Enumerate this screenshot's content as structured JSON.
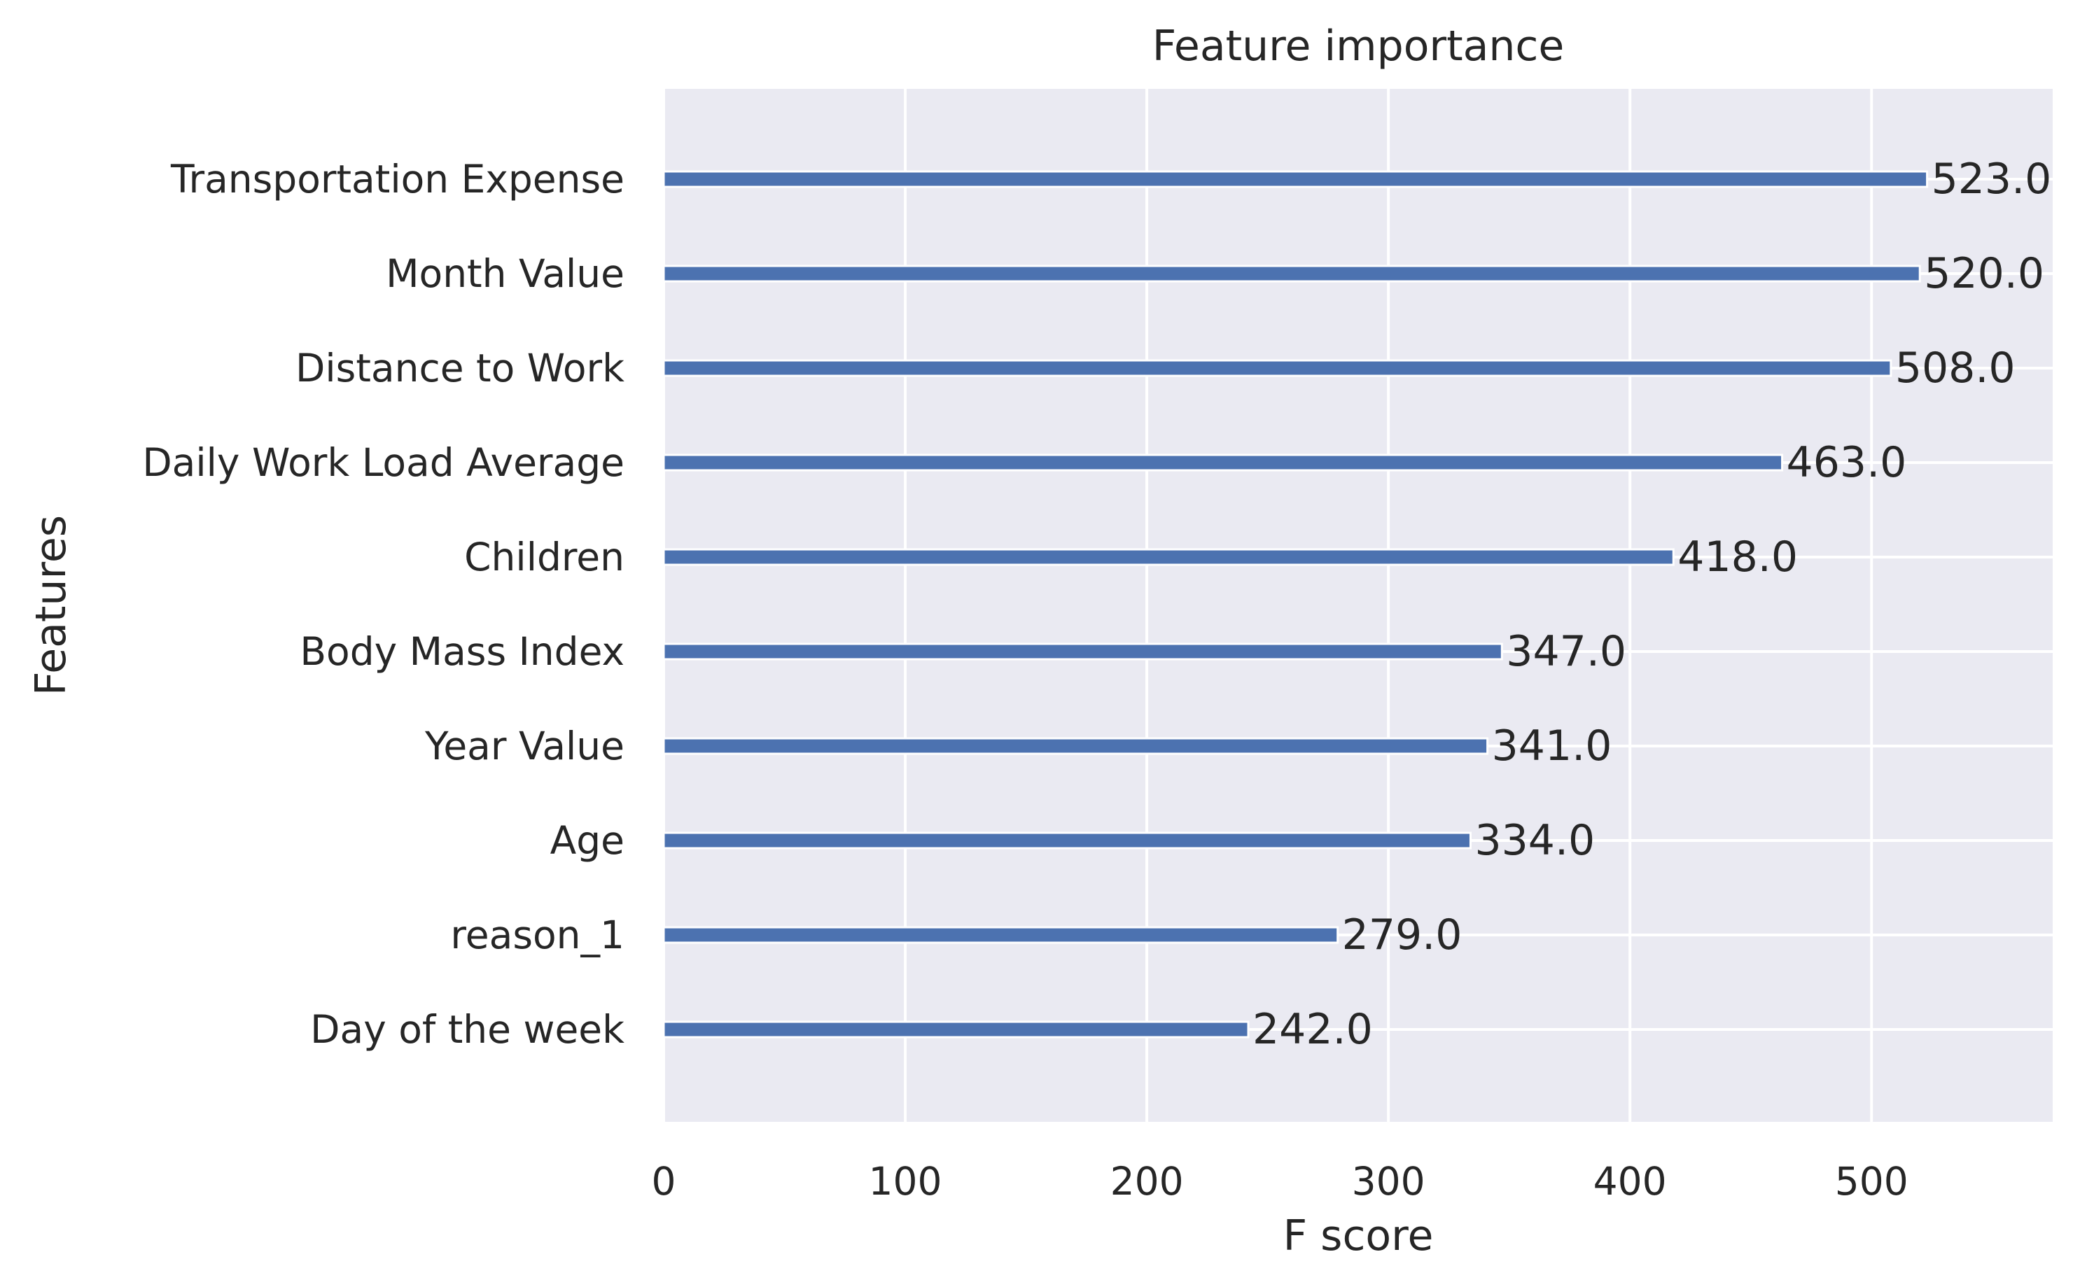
{
  "chart_data": {
    "type": "bar",
    "orientation": "horizontal",
    "title": "Feature importance",
    "xlabel": "F score",
    "ylabel": "Features",
    "categories": [
      "Transportation Expense",
      "Month Value",
      "Distance to Work",
      "Daily Work Load Average",
      "Children",
      "Body Mass Index",
      "Year Value",
      "Age",
      "reason_1",
      "Day of the week"
    ],
    "values": [
      523.0,
      520.0,
      508.0,
      463.0,
      418.0,
      347.0,
      341.0,
      334.0,
      279.0,
      242.0
    ],
    "data_labels": [
      "523.0",
      "520.0",
      "508.0",
      "463.0",
      "418.0",
      "347.0",
      "341.0",
      "334.0",
      "279.0",
      "242.0"
    ],
    "xticks": [
      0,
      100,
      200,
      300,
      400,
      500
    ],
    "xtick_labels": [
      "0",
      "100",
      "200",
      "300",
      "400",
      "500"
    ],
    "xlim": [
      0,
      575
    ],
    "grid": true,
    "legend": "none",
    "colors": {
      "bar": "#4c72b0",
      "plot_background": "#eaeaf2",
      "grid": "#ffffff",
      "text": "#262626"
    }
  }
}
